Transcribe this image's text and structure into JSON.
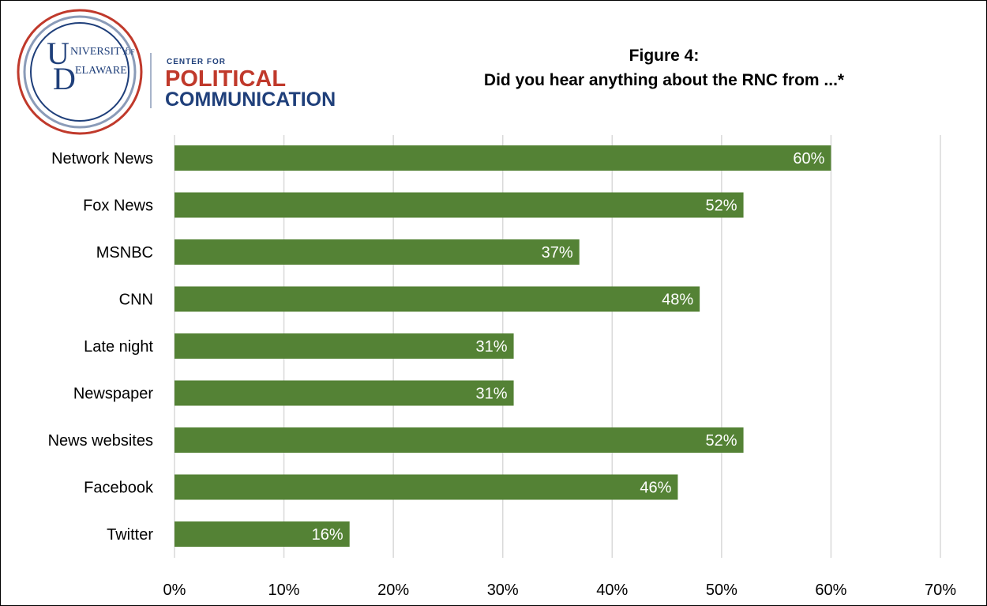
{
  "logo": {
    "university_line1": "NIVERSITY",
    "university_of": "OF",
    "university_line2": "ELAWARE",
    "center_for": "CENTER FOR",
    "political": "POLITICAL",
    "communication": "COMMUNICATION",
    "colors": {
      "red": "#c0392b",
      "blue": "#1f3f7a",
      "seal_gray": "#8a9bb8"
    }
  },
  "chart_data": {
    "type": "bar",
    "orientation": "horizontal",
    "title_line1": "Figure 4:",
    "title_line2": "Did you hear anything about the RNC from ...*",
    "categories": [
      "Network News",
      "Fox News",
      "MSNBC",
      "CNN",
      "Late night",
      "Newspaper",
      "News websites",
      "Facebook",
      "Twitter"
    ],
    "values": [
      60,
      52,
      37,
      48,
      31,
      31,
      52,
      46,
      16
    ],
    "data_labels": [
      "60%",
      "52%",
      "37%",
      "48%",
      "31%",
      "31%",
      "52%",
      "46%",
      "16%"
    ],
    "xlim": [
      0,
      70
    ],
    "xticks": [
      0,
      10,
      20,
      30,
      40,
      50,
      60,
      70
    ],
    "xtick_labels": [
      "0%",
      "10%",
      "20%",
      "30%",
      "40%",
      "50%",
      "60%",
      "70%"
    ],
    "grid": true,
    "bar_color": "#548235",
    "grid_color": "#d9d9d9"
  }
}
